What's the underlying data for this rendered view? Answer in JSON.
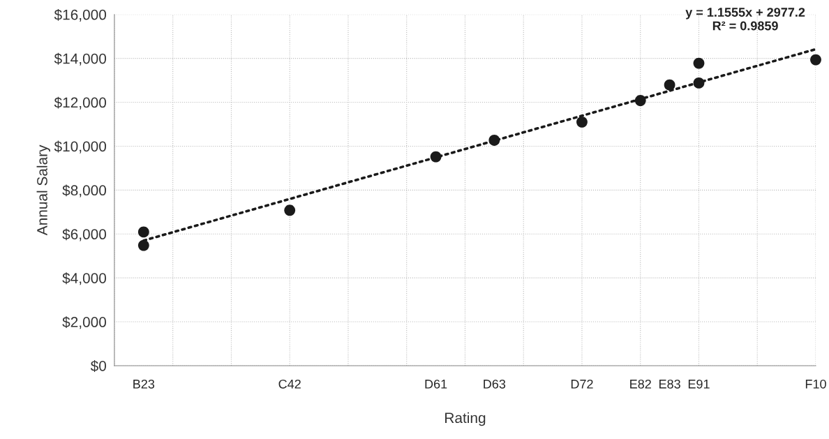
{
  "chart_data": {
    "type": "scatter",
    "xlabel": "Rating",
    "ylabel": "Annual Salary",
    "annotations": [
      "y = 1.1555x + 2977.2\nR² = 0.9859"
    ],
    "categories": [
      null,
      "B23",
      null,
      null,
      null,
      null,
      "C42",
      null,
      null,
      null,
      null,
      "D61",
      null,
      "D63",
      null,
      null,
      "D72",
      null,
      "E82",
      "E83",
      "E91",
      null,
      null,
      null,
      "F10"
    ],
    "series": [
      {
        "color": "#1a1a1a",
        "marker": "circle",
        "values": [
          null,
          6090,
          null,
          null,
          null,
          null,
          7080,
          null,
          null,
          null,
          null,
          9520,
          null,
          10270,
          null,
          null,
          11100,
          null,
          12080,
          12790,
          13780,
          null,
          null,
          null,
          13940
        ]
      },
      {
        "color": "#1a1a1a",
        "marker": "circle",
        "values": [
          null,
          5480,
          null,
          null,
          null,
          null,
          null,
          null,
          null,
          null,
          null,
          null,
          null,
          null,
          null,
          null,
          null,
          null,
          null,
          null,
          12880,
          null,
          null,
          null,
          null
        ]
      },
      {
        "type": "line",
        "color": "#1a1a1a",
        "line_style": "dotted",
        "values": [
          null,
          5700,
          null,
          null,
          null,
          null,
          null,
          null,
          null,
          null,
          null,
          null,
          null,
          null,
          null,
          null,
          null,
          null,
          null,
          null,
          null,
          null,
          null,
          null,
          14420
        ]
      }
    ],
    "ylim": [
      0,
      16000
    ],
    "yticks": [
      {
        "value": 0,
        "label": "$0"
      },
      {
        "value": 2000,
        "label": "$2,000"
      },
      {
        "value": 4000,
        "label": "$4,000"
      },
      {
        "value": 6000,
        "label": "$6,000"
      },
      {
        "value": 8000,
        "label": "$8,000"
      },
      {
        "value": 10000,
        "label": "$10,000"
      },
      {
        "value": 12000,
        "label": "$12,000"
      },
      {
        "value": 14000,
        "label": "$14,000"
      },
      {
        "value": 16000,
        "label": "$16,000"
      }
    ],
    "grid": true
  }
}
